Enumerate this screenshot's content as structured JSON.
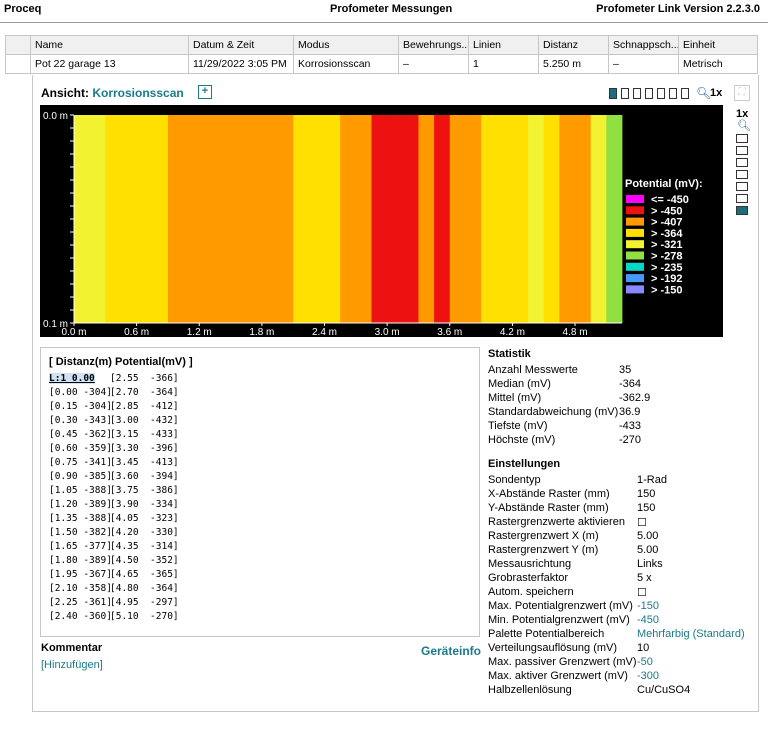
{
  "header": {
    "app": "Proceq",
    "title": "Profometer Messungen",
    "version": "Profometer Link Version 2.2.3.0"
  },
  "table": {
    "columns": [
      "Name",
      "Datum & Zeit",
      "Modus",
      "Bewehrungs...",
      "Linien",
      "Distanz",
      "Schnappsch...",
      "Einheit"
    ],
    "row": [
      "Pot 22 garage 13",
      "11/29/2022 3:05 PM",
      "Korrosionsscan",
      "–",
      "1",
      "5.250 m",
      "–",
      "Metrisch"
    ]
  },
  "view": {
    "label": "Ansicht:",
    "value": "Korrosionsscan",
    "add_icon": "plus-square-icon",
    "zoom_label": "1x",
    "side_zoom_label": "1x",
    "zoom_icon": "magnifier-icon",
    "fit_icon": "fit-window-icon"
  },
  "chart_data": {
    "type": "heatmap",
    "y_ticks": [
      "0.0 m",
      "0.1 m"
    ],
    "x_ticks": [
      "0.0 m",
      "0.6 m",
      "1.2 m",
      "1.8 m",
      "2.4 m",
      "3.0 m",
      "3.6 m",
      "4.2 m",
      "4.8 m"
    ],
    "x_range": [
      0.0,
      5.25
    ],
    "bin_width": 0.15,
    "values": [
      -304,
      -304,
      -343,
      -362,
      -359,
      -341,
      -385,
      -388,
      -389,
      -388,
      -382,
      -377,
      -389,
      -367,
      -358,
      -361,
      -360,
      -366,
      -364,
      -412,
      -432,
      -433,
      -396,
      -413,
      -394,
      -386,
      -334,
      -323,
      -330,
      -314,
      -352,
      -365,
      -364,
      -297,
      -270
    ],
    "legend_title": "Potential (mV):",
    "legend": [
      {
        "label": "<= -450",
        "color": "#ff00ff"
      },
      {
        "label": "> -450",
        "color": "#ee1111"
      },
      {
        "label": "> -407",
        "color": "#ff9a00"
      },
      {
        "label": "> -364",
        "color": "#ffe000"
      },
      {
        "label": "> -321",
        "color": "#f2f230"
      },
      {
        "label": "> -278",
        "color": "#8fe040"
      },
      {
        "label": "> -235",
        "color": "#00d8c8"
      },
      {
        "label": "> -192",
        "color": "#4898ff"
      },
      {
        "label": "> -150",
        "color": "#8888ff"
      }
    ]
  },
  "data_list": {
    "header": "[ Distanz(m)  Potential(mV) ]",
    "l1": "L:1  0.00",
    "col1": [
      "[0.00 -304]",
      "[0.15 -304]",
      "[0.30 -343]",
      "[0.45 -362]",
      "[0.60 -359]",
      "[0.75 -341]",
      "[0.90 -385]",
      "[1.05 -388]",
      "[1.20 -389]",
      "[1.35 -388]",
      "[1.50 -382]",
      "[1.65 -377]",
      "[1.80 -389]",
      "[1.95 -367]",
      "[2.10 -358]",
      "[2.25 -361]",
      "[2.40 -360]"
    ],
    "col2": [
      "[2.55  -366]",
      "[2.70  -364]",
      "[2.85  -412]",
      "[3.00  -432]",
      "[3.15  -433]",
      "[3.30  -396]",
      "[3.45  -413]",
      "[3.60  -394]",
      "[3.75  -386]",
      "[3.90  -334]",
      "[4.05  -323]",
      "[4.20  -330]",
      "[4.35  -314]",
      "[4.50  -352]",
      "[4.65  -365]",
      "[4.80  -364]",
      "[4.95  -297]",
      "[5.10  -270]"
    ]
  },
  "comment": {
    "title": "Kommentar",
    "add": "[Hinzufügen]"
  },
  "device_info": "Geräteinfo",
  "statistik": {
    "title": "Statistik",
    "rows": [
      {
        "k": "Anzahl Messwerte",
        "v": "35"
      },
      {
        "k": "Median (mV)",
        "v": "-364"
      },
      {
        "k": "Mittel (mV)",
        "v": "-362.9"
      },
      {
        "k": "Standardabweichung (mV)",
        "v": "36.9"
      },
      {
        "k": "Tiefste (mV)",
        "v": "-433"
      },
      {
        "k": "Höchste (mV)",
        "v": "-270"
      }
    ]
  },
  "einstellungen": {
    "title": "Einstellungen",
    "rows": [
      {
        "k": "Sondentyp",
        "v": "1-Rad"
      },
      {
        "k": "X-Abstände Raster (mm)",
        "v": "150"
      },
      {
        "k": "Y-Abstände Raster (mm)",
        "v": "150"
      },
      {
        "k": "Rastergrenzwerte aktivieren",
        "v": "☐"
      },
      {
        "k": "Rastergrenzwert X (m)",
        "v": "5.00"
      },
      {
        "k": "Rastergrenzwert Y (m)",
        "v": "5.00"
      },
      {
        "k": "Messausrichtung",
        "v": "Links"
      },
      {
        "k": "Grobrasterfaktor",
        "v": "5 x"
      },
      {
        "k": "Autom. speichern",
        "v": "☐"
      },
      {
        "k": "Max. Potentialgrenzwert (mV)",
        "v": "-150"
      },
      {
        "k": "Min. Potentialgrenzwert (mV)",
        "v": "-450"
      },
      {
        "k": "Palette Potentialbereich",
        "v": "Mehrfarbig (Standard)"
      },
      {
        "k": "Verteilungsauflösung (mV)",
        "v": "10"
      },
      {
        "k": "Max. passiver Grenzwert (mV)",
        "v": "-50"
      },
      {
        "k": "Max. aktiver Grenzwert (mV)",
        "v": "-300"
      },
      {
        "k": "Halbzellenlösung",
        "v": "Cu/CuSO4"
      }
    ]
  }
}
